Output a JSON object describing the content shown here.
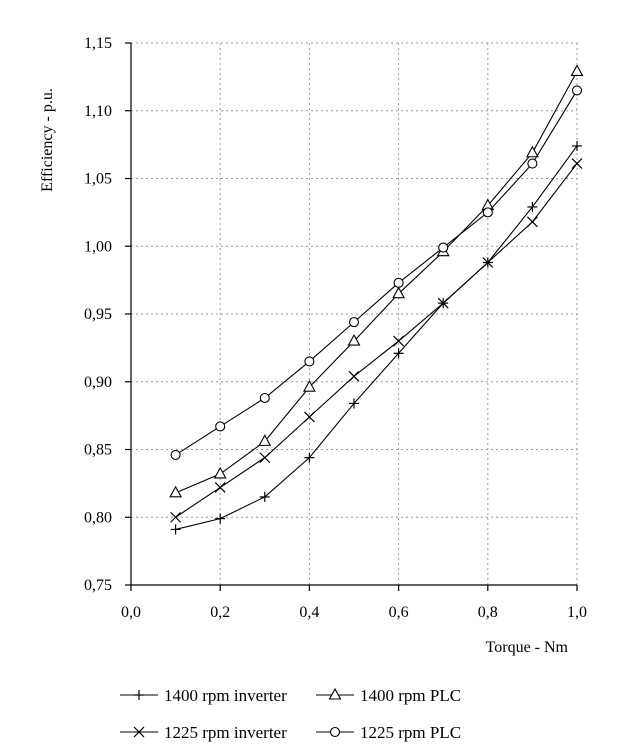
{
  "chart_data": {
    "type": "line",
    "title": "",
    "xlabel": "Torque - Nm",
    "ylabel": "Efficiency - p.u.",
    "xlim": [
      0,
      1
    ],
    "ylim": [
      0.75,
      1.15
    ],
    "grid": true,
    "legend_position": "bottom",
    "x_ticks": [
      "0,0",
      "0,2",
      "0,4",
      "0,6",
      "0,8",
      "1,0"
    ],
    "y_ticks": [
      "0,75",
      "0,80",
      "0,85",
      "0,90",
      "0,95",
      "1,00",
      "1,05",
      "1,10",
      "1,15"
    ],
    "x": [
      0.1,
      0.2,
      0.3,
      0.4,
      0.5,
      0.6,
      0.7,
      0.8,
      0.9,
      1.0
    ],
    "series": [
      {
        "name": "1400 rpm inverter",
        "marker": "plus",
        "values": [
          0.791,
          0.799,
          0.815,
          0.844,
          0.884,
          0.921,
          0.958,
          0.988,
          1.029,
          1.074
        ]
      },
      {
        "name": "1400 rpm PLC",
        "marker": "triangle",
        "values": [
          0.818,
          0.832,
          0.856,
          0.896,
          0.93,
          0.965,
          0.996,
          1.03,
          1.069,
          1.129
        ]
      },
      {
        "name": "1225 rpm inverter",
        "marker": "x",
        "values": [
          0.8,
          0.822,
          0.844,
          0.874,
          0.904,
          0.93,
          0.958,
          0.988,
          1.018,
          1.061
        ]
      },
      {
        "name": "1225 rpm PLC",
        "marker": "circle",
        "values": [
          0.846,
          0.867,
          0.888,
          0.915,
          0.944,
          0.973,
          0.999,
          1.025,
          1.061,
          1.115
        ]
      }
    ]
  }
}
